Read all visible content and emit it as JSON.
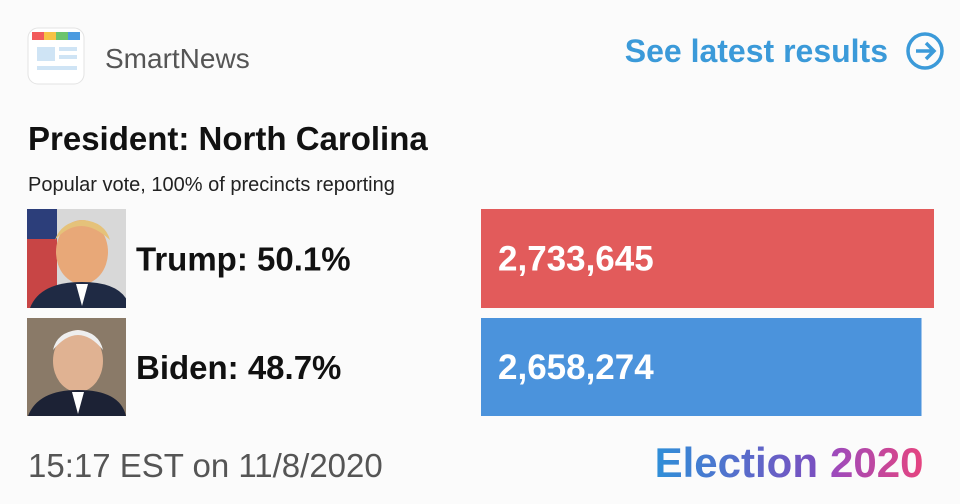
{
  "header": {
    "app_name": "SmartNews",
    "link": "See latest results"
  },
  "title": "President: North Carolina",
  "subtitle": "Popular vote, 100% of precincts reporting",
  "candidates": [
    {
      "label": "Trump: 50.1%",
      "votes": {
        "value": 2733645,
        "label": "2,733,645"
      },
      "color": "#e25b5b"
    },
    {
      "label": "Biden: 48.7%",
      "votes": {
        "value": 2658274,
        "label": "2,658,274"
      },
      "color": "#4b93dc"
    }
  ],
  "footer": {
    "timestamp": "15:17 EST on 11/8/2020",
    "brand": "Election",
    "year": "2020"
  }
}
